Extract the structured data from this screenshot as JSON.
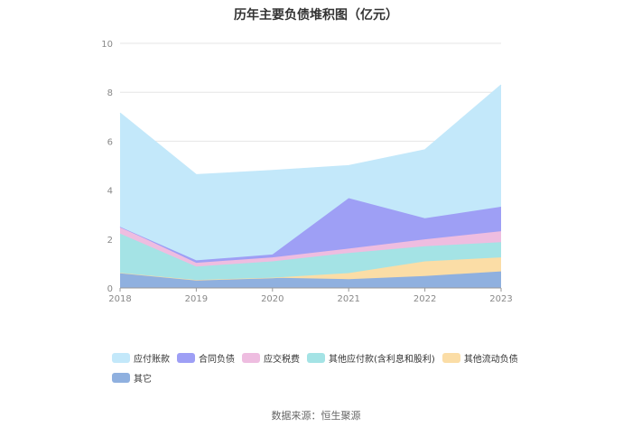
{
  "chart_data": {
    "type": "area",
    "stacked": true,
    "title": "历年主要负债堆积图（亿元）",
    "x": [
      "2018",
      "2019",
      "2020",
      "2021",
      "2022",
      "2023"
    ],
    "ylim": [
      0,
      10
    ],
    "yticks": [
      "0",
      "2",
      "4",
      "6",
      "8",
      "10"
    ],
    "grid": true,
    "legend_position": "bottom-left",
    "series": [
      {
        "name": "其它",
        "color": "#8fb0df",
        "values": [
          0.62,
          0.33,
          0.42,
          0.36,
          0.49,
          0.68
        ]
      },
      {
        "name": "其他流动负债",
        "color": "#fbdda6",
        "values": [
          0.0,
          0.0,
          0.0,
          0.25,
          0.6,
          0.57
        ]
      },
      {
        "name": "其他应付款(含利息和股利)",
        "color": "#a4e3e5",
        "values": [
          1.6,
          0.55,
          0.67,
          0.82,
          0.62,
          0.62
        ]
      },
      {
        "name": "应交税费",
        "color": "#eebde0",
        "values": [
          0.28,
          0.15,
          0.16,
          0.18,
          0.28,
          0.45
        ]
      },
      {
        "name": "合同负债",
        "color": "#9e9ff5",
        "values": [
          0.0,
          0.1,
          0.12,
          2.06,
          0.86,
          1.0
        ]
      },
      {
        "name": "应付账款",
        "color": "#c3e8fa",
        "values": [
          4.65,
          3.5,
          3.43,
          1.33,
          2.8,
          4.98
        ]
      }
    ]
  },
  "source_text": "数据来源：恒生聚源"
}
